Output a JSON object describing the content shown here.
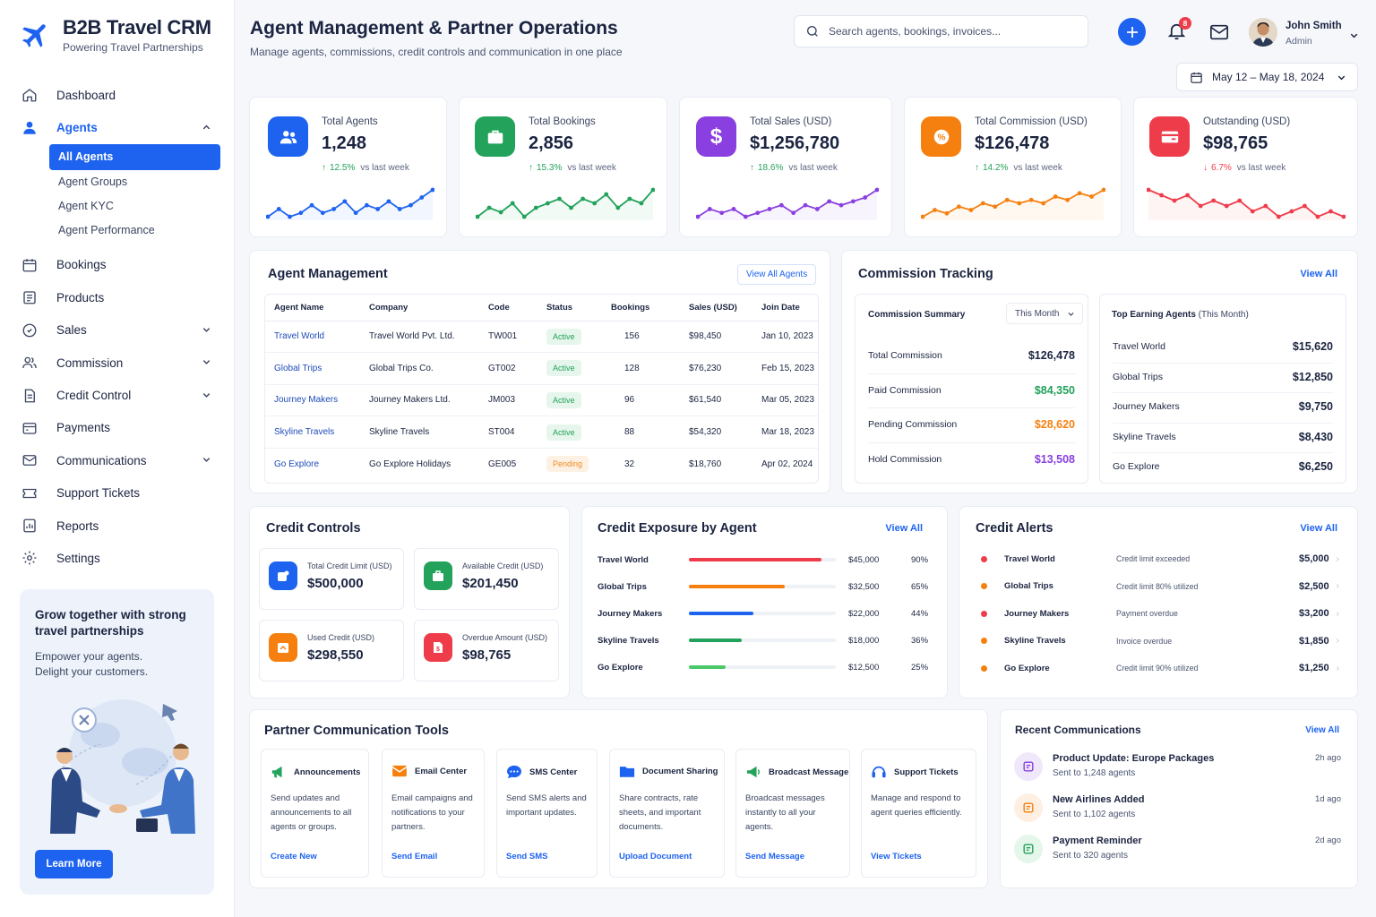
{
  "brand": {
    "title": "B2B Travel CRM",
    "subtitle": "Powering Travel Partnerships",
    "color": "#1e63f0"
  },
  "sidebar": {
    "items": [
      {
        "label": "Dashboard",
        "icon": "home-icon"
      },
      {
        "label": "Agents",
        "icon": "user-icon",
        "expanded": true
      },
      {
        "label": "Bookings",
        "icon": "calendar-icon"
      },
      {
        "label": "Products",
        "icon": "box-icon"
      },
      {
        "label": "Sales",
        "icon": "tag-icon"
      },
      {
        "label": "Commission",
        "icon": "users-icon"
      },
      {
        "label": "Credit Control",
        "icon": "document-icon"
      },
      {
        "label": "Payments",
        "icon": "wallet-icon"
      },
      {
        "label": "Communications",
        "icon": "mail-icon"
      },
      {
        "label": "Support Tickets",
        "icon": "ticket-icon"
      },
      {
        "label": "Reports",
        "icon": "chart-icon"
      },
      {
        "label": "Settings",
        "icon": "gear-icon"
      }
    ],
    "agent_sub": [
      "All Agents",
      "Agent Groups",
      "Agent KYC",
      "Agent Performance"
    ],
    "promo": {
      "title": "Grow together with strong travel partnerships",
      "text": "Empower your agents. Delight your customers.",
      "button": "Learn More"
    }
  },
  "header": {
    "title": "Agent Management & Partner Operations",
    "subtitle": "Manage agents, commissions, credit controls and communication in one place",
    "search_placeholder": "Search agents, bookings, invoices...",
    "notifications": "8",
    "user_name": "John Smith",
    "user_role": "Admin",
    "date_range": "May 12 – May 18, 2024"
  },
  "kpis": [
    {
      "label": "Total Agents",
      "value": "1,248",
      "pct": "12.5%",
      "direction": "up",
      "suffix": "vs last week",
      "color": "#1e63f0",
      "trend": [
        4,
        6,
        4,
        5,
        7,
        5,
        6,
        8,
        5,
        7,
        6,
        8,
        6,
        7,
        9,
        11
      ]
    },
    {
      "label": "Total Bookings",
      "value": "2,856",
      "pct": "15.3%",
      "direction": "up",
      "suffix": "vs last week",
      "color": "#22a25a",
      "trend": [
        5,
        7,
        6,
        8,
        5,
        7,
        8,
        9,
        7,
        9,
        8,
        10,
        7,
        9,
        8,
        11
      ]
    },
    {
      "label": "Total Sales (USD)",
      "value": "$1,256,780",
      "pct": "18.6%",
      "direction": "up",
      "suffix": "vs last week",
      "color": "#8a3fe0",
      "trend": [
        5,
        7,
        6,
        7,
        5,
        6,
        7,
        8,
        6,
        8,
        7,
        9,
        8,
        9,
        10,
        12
      ]
    },
    {
      "label": "Total Commission (USD)",
      "value": "$126,478",
      "pct": "14.2%",
      "direction": "up",
      "suffix": "vs last week",
      "color": "#f5800f",
      "trend": [
        4,
        6,
        5,
        7,
        6,
        8,
        7,
        9,
        8,
        9,
        8,
        10,
        9,
        11,
        10,
        12
      ]
    },
    {
      "label": "Outstanding (USD)",
      "value": "$98,765",
      "pct": "6.7%",
      "direction": "down",
      "suffix": "vs last week",
      "color": "#ef3c4b",
      "trend": [
        10,
        9,
        8,
        9,
        7,
        8,
        7,
        8,
        6,
        7,
        5,
        6,
        7,
        5,
        6,
        5
      ]
    }
  ],
  "agent_mgmt": {
    "title": "Agent Management",
    "view_all": "View All Agents",
    "columns": [
      "Agent Name",
      "Company",
      "Code",
      "Status",
      "Bookings",
      "Sales (USD)",
      "Join Date"
    ],
    "rows": [
      [
        "Travel World",
        "Travel World Pvt. Ltd.",
        "TW001",
        "Active",
        "156",
        "$98,450",
        "Jan 10, 2023"
      ],
      [
        "Global Trips",
        "Global Trips Co.",
        "GT002",
        "Active",
        "128",
        "$76,230",
        "Feb 15, 2023"
      ],
      [
        "Journey Makers",
        "Journey Makers Ltd.",
        "JM003",
        "Active",
        "96",
        "$61,540",
        "Mar 05, 2023"
      ],
      [
        "Skyline Travels",
        "Skyline Travels",
        "ST004",
        "Active",
        "88",
        "$54,320",
        "Mar 18, 2023"
      ],
      [
        "Go Explore",
        "Go Explore Holidays",
        "GE005",
        "Pending",
        "32",
        "$18,760",
        "Apr 02, 2024"
      ]
    ]
  },
  "commission": {
    "title": "Commission Tracking",
    "view_all": "View All",
    "summary_title": "Commission Summary",
    "period": "This Month",
    "summary": [
      {
        "label": "Total Commission",
        "value": "$126,478",
        "color": "#1b2440"
      },
      {
        "label": "Paid Commission",
        "value": "$84,350",
        "color": "#22a25a"
      },
      {
        "label": "Pending Commission",
        "value": "$28,620",
        "color": "#f5800f"
      },
      {
        "label": "Hold Commission",
        "value": "$13,508",
        "color": "#8a3fe0"
      }
    ],
    "top_title": "Top Earning Agents",
    "top_period": "(This Month)",
    "top": [
      {
        "name": "Travel World",
        "value": "$15,620"
      },
      {
        "name": "Global Trips",
        "value": "$12,850"
      },
      {
        "name": "Journey Makers",
        "value": "$9,750"
      },
      {
        "name": "Skyline Travels",
        "value": "$8,430"
      },
      {
        "name": "Go Explore",
        "value": "$6,250"
      }
    ]
  },
  "credit_controls": {
    "title": "Credit Controls",
    "items": [
      {
        "label": "Total Credit Limit (USD)",
        "value": "$500,000",
        "color": "#1e63f0"
      },
      {
        "label": "Available Credit (USD)",
        "value": "$201,450",
        "color": "#22a25a"
      },
      {
        "label": "Used Credit (USD)",
        "value": "$298,550",
        "color": "#f5800f"
      },
      {
        "label": "Overdue Amount (USD)",
        "value": "$98,765",
        "color": "#ef3c4b"
      }
    ]
  },
  "exposure": {
    "title": "Credit Exposure by Agent",
    "view_all": "View All",
    "rows": [
      {
        "name": "Travel World",
        "amount": "$45,000",
        "pct": "90%",
        "fill": 0.9,
        "color": "#ef3c4b"
      },
      {
        "name": "Global Trips",
        "amount": "$32,500",
        "pct": "65%",
        "fill": 0.65,
        "color": "#f5800f"
      },
      {
        "name": "Journey Makers",
        "amount": "$22,000",
        "pct": "44%",
        "fill": 0.44,
        "color": "#1e63f0"
      },
      {
        "name": "Skyline Travels",
        "amount": "$18,000",
        "pct": "36%",
        "fill": 0.36,
        "color": "#22a25a"
      },
      {
        "name": "Go Explore",
        "amount": "$12,500",
        "pct": "25%",
        "fill": 0.25,
        "color": "#4cc76a"
      }
    ]
  },
  "alerts": {
    "title": "Credit Alerts",
    "view_all": "View All",
    "rows": [
      {
        "name": "Travel World",
        "msg": "Credit limit exceeded",
        "amount": "$5,000",
        "color": "#ef3c4b"
      },
      {
        "name": "Global Trips",
        "msg": "Credit limit 80% utilized",
        "amount": "$2,500",
        "color": "#f5800f"
      },
      {
        "name": "Journey Makers",
        "msg": "Payment overdue",
        "amount": "$3,200",
        "color": "#ef3c4b"
      },
      {
        "name": "Skyline Travels",
        "msg": "Invoice overdue",
        "amount": "$1,850",
        "color": "#f5800f"
      },
      {
        "name": "Go Explore",
        "msg": "Credit limit 90% utilized",
        "amount": "$1,250",
        "color": "#f5800f"
      }
    ]
  },
  "tools": {
    "title": "Partner Communication Tools",
    "items": [
      {
        "name": "Announcements",
        "desc": "Send updates and announcements to all agents or groups.",
        "link": "Create New"
      },
      {
        "name": "Email Center",
        "desc": "Email campaigns and notifications to your partners.",
        "link": "Send Email"
      },
      {
        "name": "SMS Center",
        "desc": "Send SMS alerts and important updates.",
        "link": "Send SMS"
      },
      {
        "name": "Document Sharing",
        "desc": "Share contracts, rate sheets, and important documents.",
        "link": "Upload Document"
      },
      {
        "name": "Broadcast Message",
        "desc": "Broadcast messages instantly to all your agents.",
        "link": "Send Message"
      },
      {
        "name": "Support Tickets",
        "desc": "Manage and respond to agent queries efficiently.",
        "link": "View Tickets"
      }
    ]
  },
  "recent": {
    "title": "Recent Communications",
    "view_all": "View All",
    "items": [
      {
        "title": "Product Update: Europe Packages",
        "sub": "Sent to 1,248 agents",
        "time": "2h ago"
      },
      {
        "title": "New Airlines Added",
        "sub": "Sent to 1,102 agents",
        "time": "1d ago"
      },
      {
        "title": "Payment Reminder",
        "sub": "Sent to 320 agents",
        "time": "2d ago"
      }
    ]
  }
}
